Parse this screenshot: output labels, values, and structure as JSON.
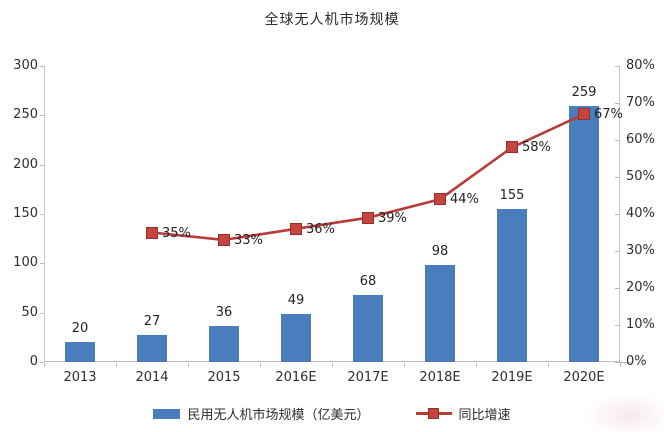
{
  "title": "全球无人机市场规模",
  "chart_data": {
    "type": "bar+line",
    "title": "全球无人机市场规模",
    "categories": [
      "2013",
      "2014",
      "2015",
      "2016E",
      "2017E",
      "2018E",
      "2019E",
      "2020E"
    ],
    "series": [
      {
        "name": "民用无人机市场规模（亿美元）",
        "chart_type": "bar",
        "axis": "left",
        "color": "#4a7dbd",
        "values": [
          20,
          27,
          36,
          49,
          68,
          98,
          155,
          259
        ],
        "labels": [
          "20",
          "27",
          "36",
          "49",
          "68",
          "98",
          "155",
          "259"
        ]
      },
      {
        "name": "同比增速",
        "chart_type": "line",
        "axis": "right",
        "color": "#b93b38",
        "marker_color": "#c5443d",
        "marker_border": "#92302b",
        "values": [
          null,
          35,
          33,
          36,
          39,
          44,
          58,
          67
        ],
        "labels": [
          null,
          "35%",
          "33%",
          "36%",
          "39%",
          "44%",
          "58%",
          "67%"
        ]
      }
    ],
    "left_axis": {
      "min": 0,
      "max": 300,
      "step": 50,
      "tick_labels": [
        "0",
        "50",
        "100",
        "150",
        "200",
        "250",
        "300"
      ]
    },
    "right_axis": {
      "min": 0,
      "max": 80,
      "step": 10,
      "tick_labels": [
        "0%",
        "10%",
        "20%",
        "30%",
        "40%",
        "50%",
        "60%",
        "70%",
        "80%"
      ]
    },
    "legend_position": "bottom",
    "grid": false
  }
}
